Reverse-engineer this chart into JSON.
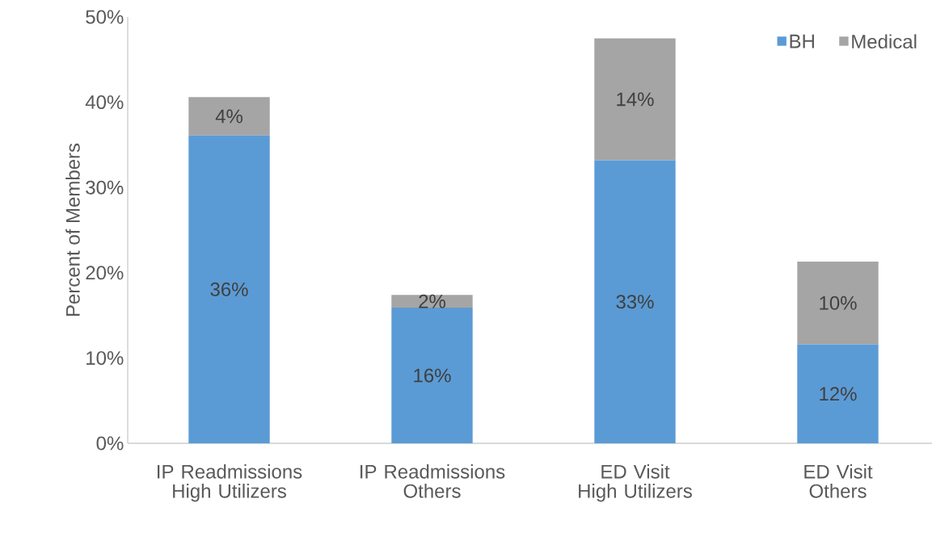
{
  "chart_data": {
    "type": "bar",
    "stacked": true,
    "ylabel": "Percent of Members",
    "categories": [
      "IP Readmissions\nHigh Utilizers",
      "IP Readmissions\nOthers",
      "ED Visit\nHigh Utilizers",
      "ED Visit\nOthers"
    ],
    "series": [
      {
        "name": "BH",
        "color": "#5b9bd5",
        "values": [
          36.1,
          15.9,
          33.2,
          11.6
        ],
        "value_labels": [
          "36%",
          "16%",
          "33%",
          "12%"
        ]
      },
      {
        "name": "Medical",
        "color": "#a5a5a5",
        "values": [
          4.5,
          1.5,
          14.3,
          9.7
        ],
        "value_labels": [
          "4%",
          "2%",
          "14%",
          "10%"
        ]
      }
    ],
    "ylim": [
      0,
      50
    ],
    "yticks": [
      {
        "value": 0,
        "label": "0%"
      },
      {
        "value": 10,
        "label": "10%"
      },
      {
        "value": 20,
        "label": "20%"
      },
      {
        "value": 30,
        "label": "30%"
      },
      {
        "value": 40,
        "label": "40%"
      },
      {
        "value": 50,
        "label": "50%"
      }
    ],
    "legend": "top right",
    "grid": false
  }
}
